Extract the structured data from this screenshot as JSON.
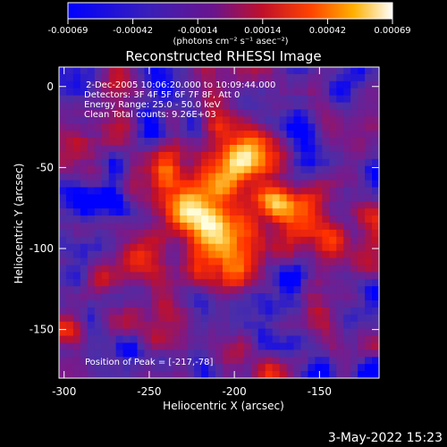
{
  "title": "Reconstructed RHESSI Image",
  "colorbar": {
    "tick_labels": [
      "-0.00069",
      "-0.00042",
      "-0.00014",
      "0.00014",
      "0.00042",
      "0.00069"
    ],
    "unit_label": "(photons cm⁻² s⁻¹ asec⁻²)"
  },
  "info": {
    "time_range": "2-Dec-2005 10:06:20.000 to 10:09:44.000",
    "detectors": "Detectors: 3F 4F 5F 6F 7F 8F, Att 0",
    "energy_range": "Energy Range: 25.0 - 50.0 keV",
    "method_and_counts": "Clean     Total counts: 9.26E+03",
    "peak_position": "Position of Peak = [-217,-78]"
  },
  "chart_data": {
    "type": "heatmap",
    "title": "Reconstructed RHESSI Image",
    "xlabel": "Heliocentric X (arcsec)",
    "ylabel": "Heliocentric Y (arcsec)",
    "xlim": [
      -303,
      -115
    ],
    "ylim": [
      -180,
      12
    ],
    "x_ticks": [
      -300,
      -250,
      -200,
      -150
    ],
    "y_ticks": [
      0,
      -50,
      -100,
      -150
    ],
    "x_tick_labels": [
      "-300",
      "-250",
      "-200",
      "-150"
    ],
    "y_tick_labels": [
      "0",
      "-50",
      "-100",
      "-150"
    ],
    "value_range": [
      -0.00069,
      0.00069
    ],
    "peak": [
      -217,
      -78
    ],
    "colormap": [
      "#0000ff",
      "#4b2ea8",
      "#7a1a8a",
      "#c0102a",
      "#ff3000",
      "#ff8a00",
      "#ffd050",
      "#ffffe0"
    ]
  },
  "footer": {
    "date": "3-May-2022 15:23"
  }
}
